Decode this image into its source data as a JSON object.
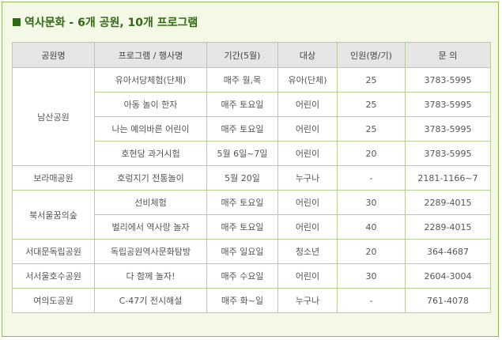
{
  "heading": {
    "title": "역사문화  -  6개 공원, 10개 프로그램"
  },
  "table": {
    "headers": [
      "공원명",
      "프로그램 / 행사명",
      "기간(5월)",
      "대상",
      "인원(명/기)",
      "문 의"
    ],
    "rows": [
      [
        "남산공원",
        "유아서당체험(단체)",
        "매주 월,목",
        "유아(단체)",
        "25",
        "3783-5995"
      ],
      [
        "",
        "아동 놀이 한자",
        "매주 토요일",
        "어린이",
        "25",
        "3783-5995"
      ],
      [
        "",
        "나는 예의바른 어린이",
        "매주 토요일",
        "어린이",
        "25",
        "3783-5995"
      ],
      [
        "",
        "호현당 과거시험",
        "5월 6일~7일",
        "어린이",
        "20",
        "3783-5995"
      ],
      [
        "보라매공원",
        "호렁지기 전통놀이",
        "5월 20일",
        "누구나",
        "-",
        "2181-1166~7"
      ],
      [
        "북서울꿈의숲",
        "선비체험",
        "매주 토요일",
        "어린이",
        "30",
        "2289-4015"
      ],
      [
        "",
        "벌리에서 역사랑 놀자",
        "매주 토요일",
        "어린이",
        "40",
        "2289-4015"
      ],
      [
        "서대문독립공원",
        "독립공원역사문화탐방",
        "매주 일요일",
        "청소년",
        "20",
        "364-4687"
      ],
      [
        "서서울호수공원",
        "다 함께 놀자!",
        "매주 수요일",
        "어린이",
        "30",
        "2604-3004"
      ],
      [
        "여의도공원",
        "C-47기 전시해설",
        "매주 화~일",
        "누구나",
        "-",
        "761-4078"
      ]
    ]
  }
}
